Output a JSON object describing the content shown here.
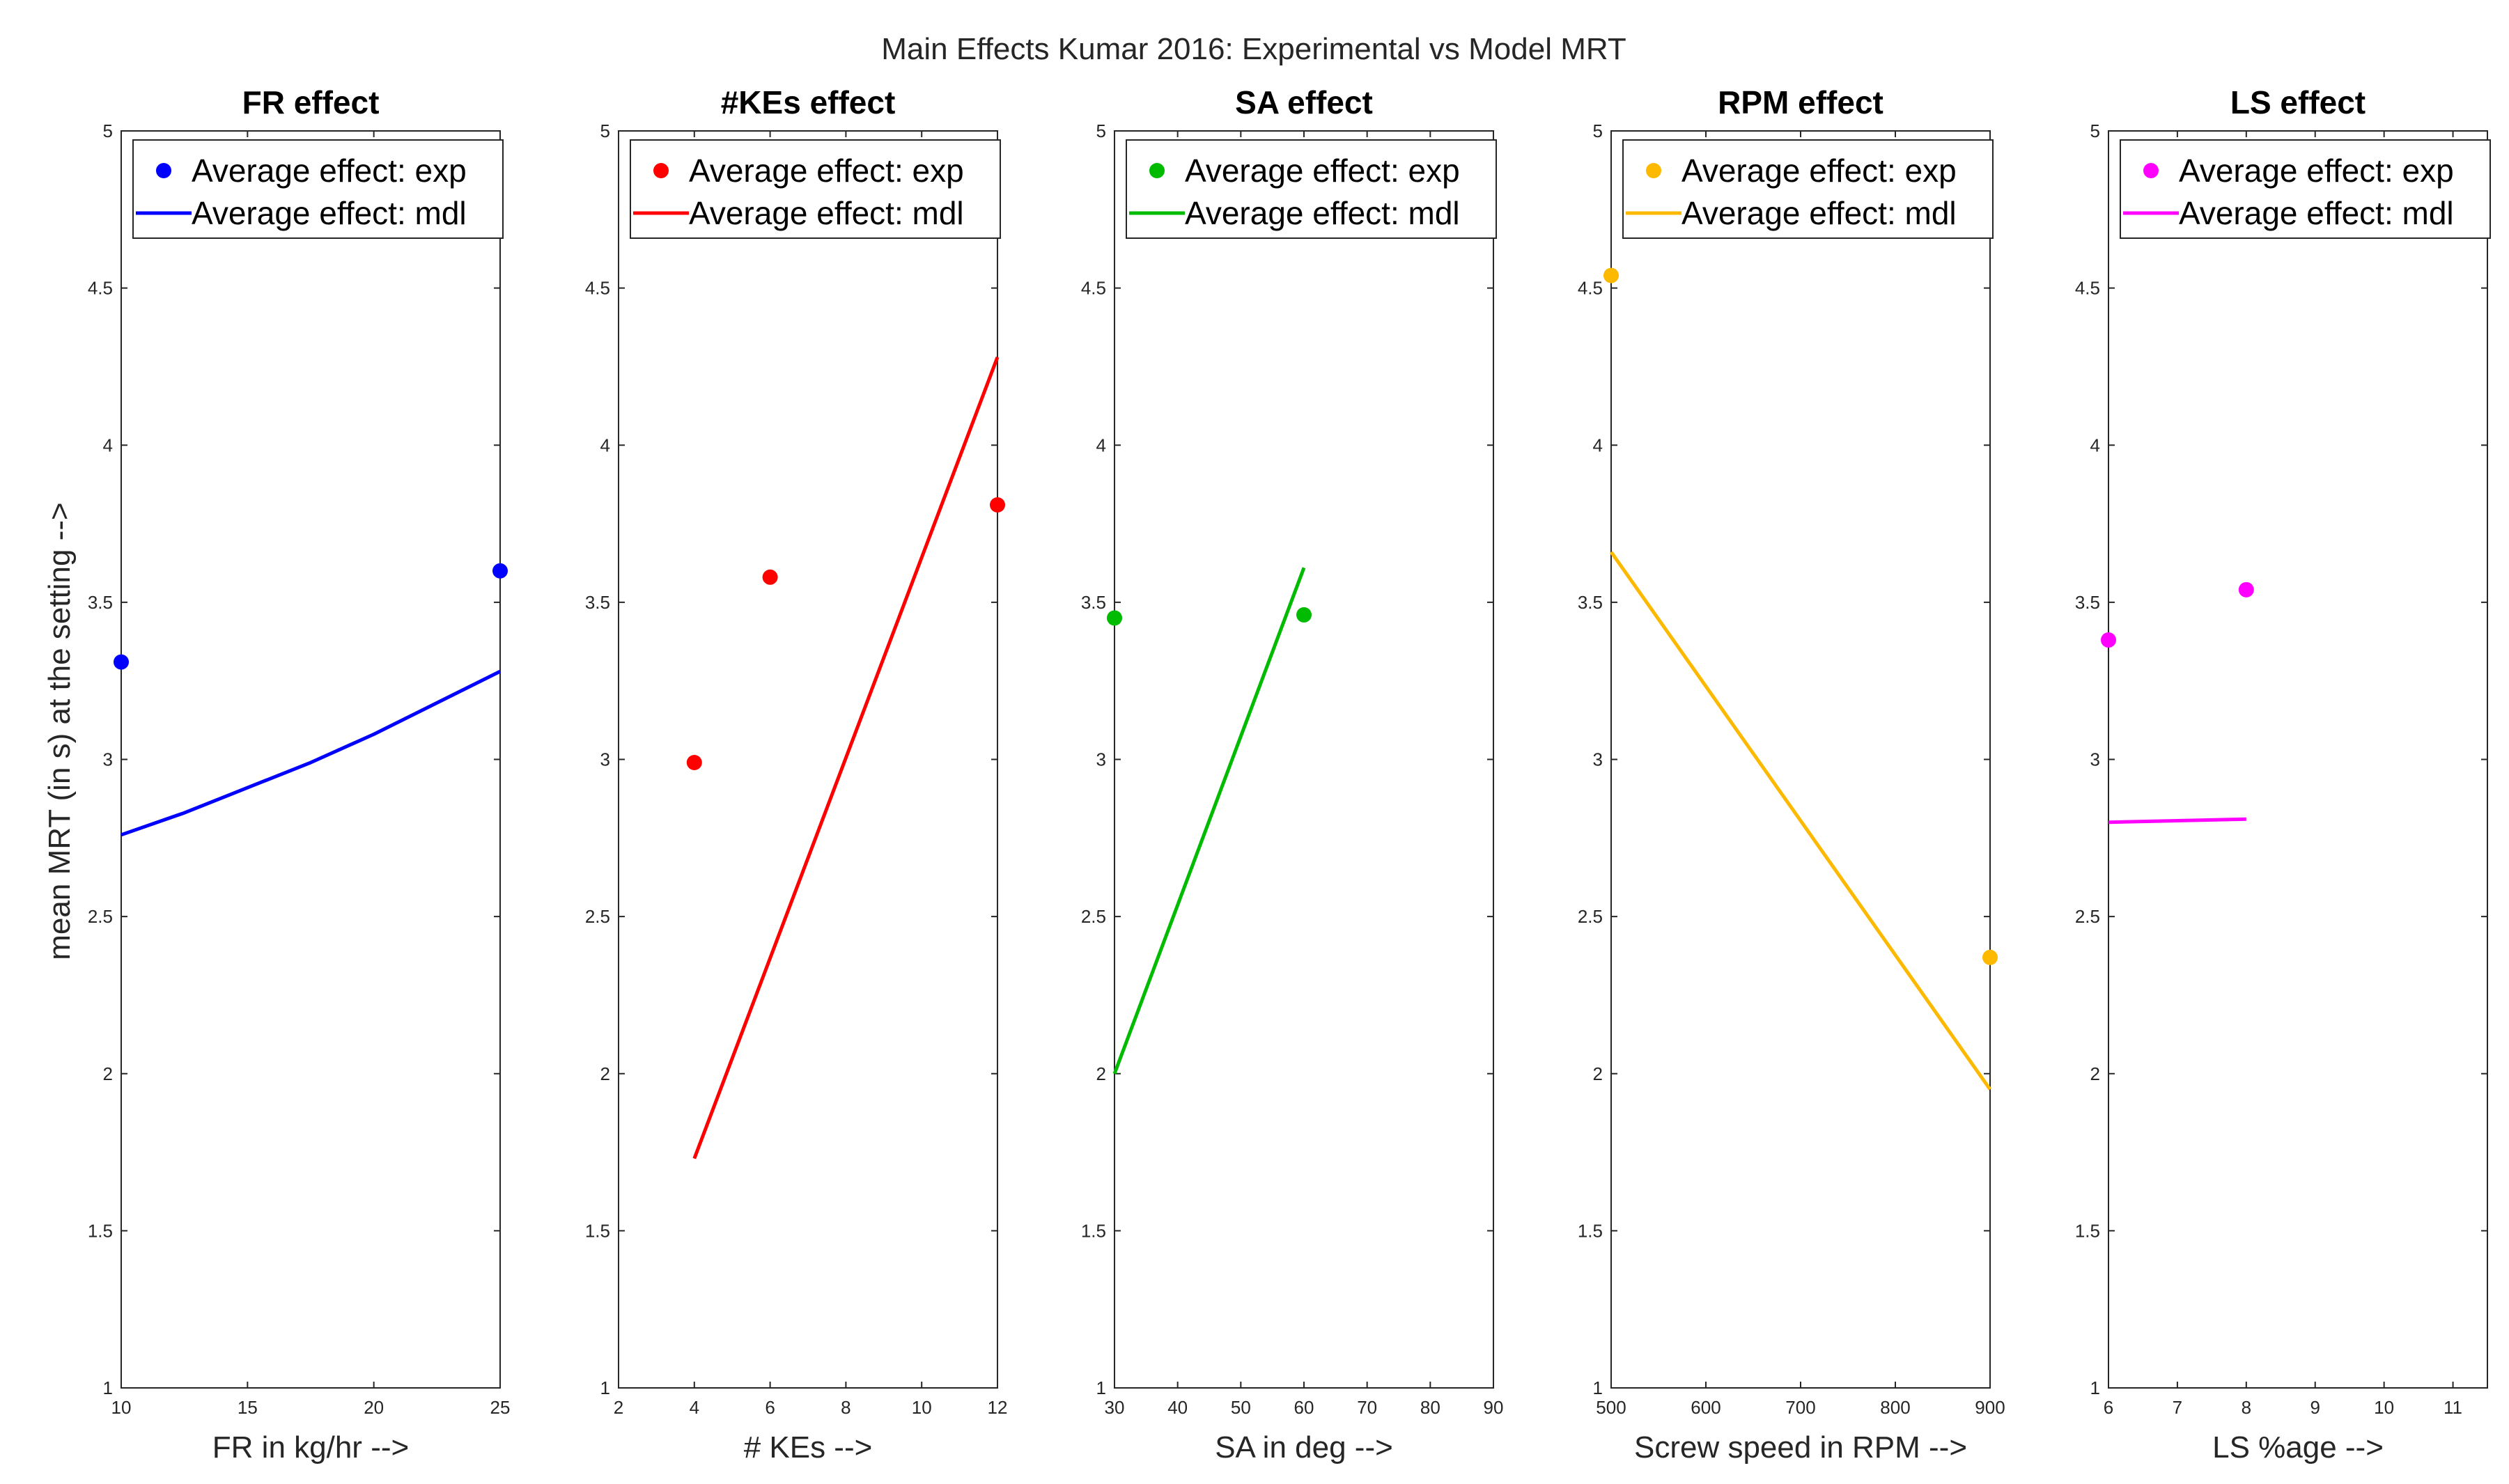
{
  "chart_data": {
    "suptitle": "Main Effects Kumar 2016: Experimental vs  Model MRT",
    "ylabel": "mean MRT (in s) at the setting -->",
    "ylim": [
      1,
      5
    ],
    "yticks": [
      1,
      1.5,
      2,
      2.5,
      3,
      3.5,
      4,
      4.5,
      5
    ],
    "legend": {
      "position": "top",
      "exp_label": "Average effect: exp",
      "mdl_label": "Average effect: mdl"
    },
    "panels": [
      {
        "type": "scatter+line",
        "title": "FR effect",
        "xlabel": "FR in kg/hr -->",
        "xlim": [
          10,
          25
        ],
        "xticks": [
          10,
          15,
          20,
          25
        ],
        "color": "#0000ff",
        "exp": {
          "x": [
            10,
            25
          ],
          "y": [
            3.31,
            3.6
          ]
        },
        "mdl": {
          "x": [
            10,
            12.5,
            15,
            17.5,
            20,
            22.5,
            25
          ],
          "y": [
            2.76,
            2.83,
            2.91,
            2.99,
            3.08,
            3.18,
            3.28
          ]
        }
      },
      {
        "type": "scatter+line",
        "title": "#KEs effect",
        "xlabel": "# KEs -->",
        "xlim": [
          2,
          12
        ],
        "xticks": [
          2,
          4,
          6,
          8,
          10,
          12
        ],
        "color": "#ff0000",
        "exp": {
          "x": [
            4,
            6,
            12
          ],
          "y": [
            2.99,
            3.58,
            3.81
          ]
        },
        "mdl": {
          "x": [
            4,
            12
          ],
          "y": [
            1.73,
            4.28
          ]
        }
      },
      {
        "type": "scatter+line",
        "title": "SA effect",
        "xlabel": "SA in deg -->",
        "xlim": [
          30,
          90
        ],
        "xticks": [
          30,
          40,
          50,
          60,
          70,
          80,
          90
        ],
        "color": "#00bb00",
        "exp": {
          "x": [
            30,
            60
          ],
          "y": [
            3.45,
            3.46
          ]
        },
        "mdl": {
          "x": [
            30,
            60
          ],
          "y": [
            2.0,
            3.61
          ]
        }
      },
      {
        "type": "scatter+line",
        "title": "RPM effect",
        "xlabel": "Screw speed in RPM -->",
        "xlim": [
          500,
          900
        ],
        "xticks": [
          500,
          600,
          700,
          800,
          900
        ],
        "color": "#fcb900",
        "exp": {
          "x": [
            500,
            900
          ],
          "y": [
            4.54,
            2.37
          ]
        },
        "mdl": {
          "x": [
            500,
            900
          ],
          "y": [
            3.66,
            1.95
          ]
        }
      },
      {
        "type": "scatter+line",
        "title": "LS effect",
        "xlabel": "LS %age -->",
        "xlim": [
          6,
          11.5
        ],
        "xticks": [
          6,
          7,
          8,
          9,
          10,
          11
        ],
        "color": "#ff00ff",
        "exp": {
          "x": [
            6,
            8
          ],
          "y": [
            3.38,
            3.54
          ]
        },
        "mdl": {
          "x": [
            6,
            8
          ],
          "y": [
            2.8,
            2.81
          ]
        }
      }
    ]
  }
}
